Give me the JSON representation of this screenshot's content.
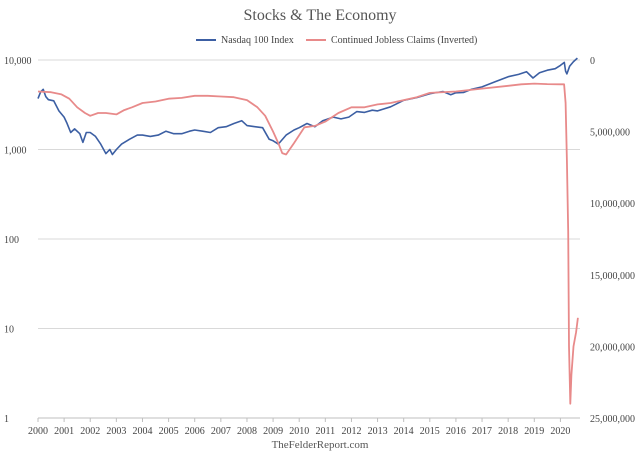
{
  "chart_data": {
    "type": "line",
    "title": "Stocks & The Economy",
    "footer": "TheFelderReport.com",
    "xlabel": "",
    "ylabel": "",
    "x_ticks": [
      "2000",
      "2001",
      "2002",
      "2003",
      "2004",
      "2005",
      "2006",
      "2007",
      "2008",
      "2009",
      "2010",
      "2011",
      "2012",
      "2013",
      "2014",
      "2015",
      "2016",
      "2017",
      "2018",
      "2019",
      "2020"
    ],
    "xlim": [
      2000,
      2020.75
    ],
    "y_left": {
      "scale": "log",
      "ylim": [
        1,
        10000
      ],
      "ticks": [
        10000,
        1000,
        100,
        10,
        1
      ],
      "tick_labels": [
        "10,000",
        "1,000",
        "100",
        "10",
        "1"
      ]
    },
    "y_right": {
      "scale": "linear",
      "inverted": true,
      "ylim": [
        0,
        25000000
      ],
      "ticks": [
        0,
        5000000,
        10000000,
        15000000,
        20000000,
        25000000
      ],
      "tick_labels": [
        "0",
        "5,000,000",
        "10,000,000",
        "15,000,000",
        "20,000,000",
        "25,000,000"
      ]
    },
    "grid": true,
    "legend": "top-center",
    "series": [
      {
        "name": "Nasdaq 100 Index",
        "axis": "left",
        "color": "#3c5fa3",
        "x": [
          2000.0,
          2000.1,
          2000.2,
          2000.3,
          2000.4,
          2000.6,
          2000.8,
          2001.0,
          2001.1,
          2001.25,
          2001.4,
          2001.6,
          2001.72,
          2001.85,
          2002.0,
          2002.2,
          2002.4,
          2002.6,
          2002.75,
          2002.85,
          2003.0,
          2003.2,
          2003.5,
          2003.8,
          2004.0,
          2004.3,
          2004.6,
          2004.9,
          2005.2,
          2005.5,
          2005.8,
          2006.0,
          2006.3,
          2006.6,
          2006.9,
          2007.2,
          2007.5,
          2007.8,
          2008.0,
          2008.3,
          2008.6,
          2008.85,
          2009.0,
          2009.2,
          2009.5,
          2009.8,
          2010.0,
          2010.3,
          2010.6,
          2010.9,
          2011.3,
          2011.6,
          2011.9,
          2012.2,
          2012.5,
          2012.8,
          2013.0,
          2013.5,
          2014.0,
          2014.5,
          2015.0,
          2015.5,
          2015.8,
          2016.0,
          2016.3,
          2016.6,
          2017.0,
          2017.5,
          2018.0,
          2018.4,
          2018.7,
          2018.95,
          2019.2,
          2019.5,
          2019.8,
          2020.0,
          2020.15,
          2020.2,
          2020.25,
          2020.35,
          2020.5,
          2020.65
        ],
        "values": [
          3700,
          4400,
          4700,
          3900,
          3600,
          3500,
          2700,
          2300,
          2000,
          1550,
          1700,
          1500,
          1200,
          1550,
          1550,
          1400,
          1150,
          900,
          1000,
          880,
          1000,
          1150,
          1300,
          1450,
          1450,
          1400,
          1450,
          1600,
          1500,
          1500,
          1600,
          1650,
          1600,
          1550,
          1750,
          1800,
          1950,
          2100,
          1850,
          1800,
          1750,
          1300,
          1250,
          1150,
          1450,
          1650,
          1750,
          1950,
          1800,
          2100,
          2300,
          2200,
          2300,
          2650,
          2600,
          2750,
          2700,
          3000,
          3550,
          3800,
          4200,
          4450,
          4100,
          4300,
          4350,
          4700,
          5000,
          5700,
          6500,
          6900,
          7400,
          6300,
          7200,
          7700,
          8000,
          8700,
          9400,
          7500,
          7000,
          8500,
          9600,
          10500
        ]
      },
      {
        "name": "Continued Jobless Claims (Inverted)",
        "axis": "right",
        "color": "#e88a8a",
        "x": [
          2000.0,
          2000.5,
          2000.9,
          2001.2,
          2001.5,
          2001.8,
          2002.0,
          2002.3,
          2002.6,
          2003.0,
          2003.3,
          2003.6,
          2004.0,
          2004.5,
          2005.0,
          2005.5,
          2006.0,
          2006.5,
          2007.0,
          2007.5,
          2008.0,
          2008.4,
          2008.7,
          2009.0,
          2009.2,
          2009.35,
          2009.5,
          2009.8,
          2010.2,
          2010.6,
          2011.0,
          2011.5,
          2012.0,
          2012.5,
          2013.0,
          2013.5,
          2014.0,
          2014.5,
          2015.0,
          2016.0,
          2017.0,
          2018.0,
          2018.5,
          2019.0,
          2019.5,
          2020.0,
          2020.14,
          2020.2,
          2020.25,
          2020.3,
          2020.33,
          2020.38,
          2020.42,
          2020.5,
          2020.6,
          2020.67
        ],
        "values": [
          2200000,
          2250000,
          2400000,
          2700000,
          3300000,
          3700000,
          3900000,
          3700000,
          3700000,
          3800000,
          3500000,
          3300000,
          3000000,
          2900000,
          2700000,
          2650000,
          2500000,
          2500000,
          2550000,
          2600000,
          2800000,
          3300000,
          3900000,
          5000000,
          5800000,
          6500000,
          6600000,
          5800000,
          4700000,
          4600000,
          4300000,
          3700000,
          3300000,
          3300000,
          3100000,
          3000000,
          2800000,
          2600000,
          2300000,
          2200000,
          2000000,
          1800000,
          1700000,
          1650000,
          1680000,
          1700000,
          1700000,
          3000000,
          7000000,
          12000000,
          20000000,
          24000000,
          22000000,
          20000000,
          19000000,
          18000000
        ]
      }
    ]
  }
}
